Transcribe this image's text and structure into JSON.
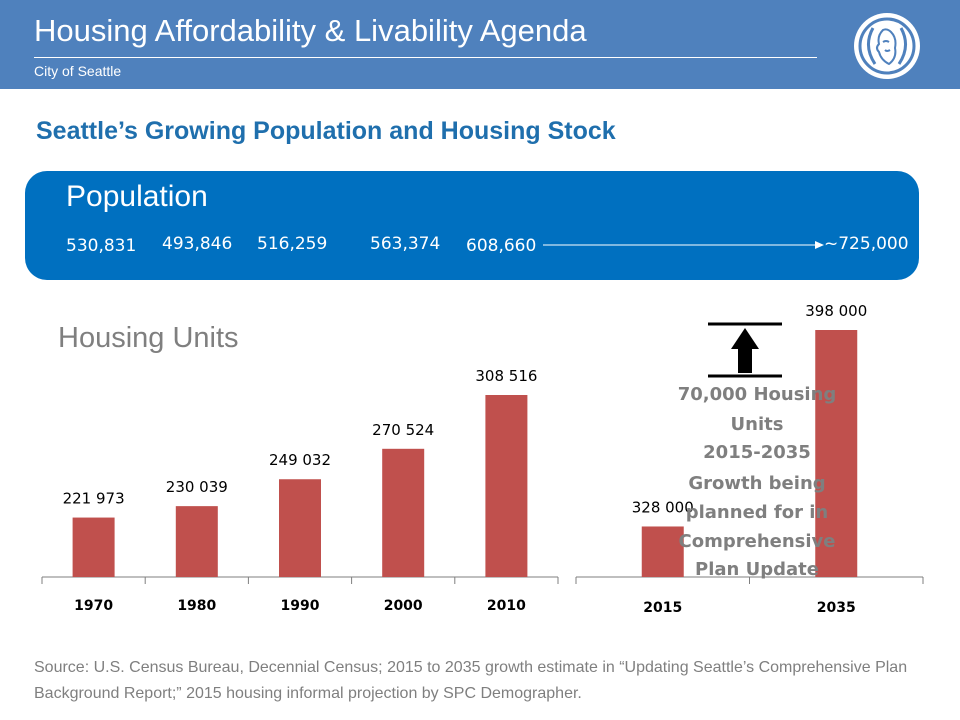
{
  "header": {
    "title": "Housing Affordability & Livability Agenda",
    "subtitle": "City of Seattle"
  },
  "section_title": "Seattle’s Growing Population and Housing Stock",
  "population": {
    "title": "Population",
    "values": [
      "530,831",
      "493,846",
      "516,259",
      "563,374",
      "608,660",
      "~725,000"
    ]
  },
  "housing_title": "Housing Units",
  "annotation": {
    "lines": [
      "70,000 Housing",
      "Units",
      "2015-2035",
      "Growth being",
      "planned for in",
      "Comprehensive",
      "Plan Update"
    ]
  },
  "source": "Source:  U.S. Census Bureau, Decennial Census; 2015 to 2035 growth estimate in “Updating Seattle’s Comprehensive Plan Background Report;”  2015 housing informal projection by SPC Demographer.",
  "colors": {
    "header": "#4f81bd",
    "panel": "#0070c0",
    "bar": "#c0504d",
    "title": "#1f6fad",
    "annotation": "#7f7f7f"
  },
  "chart_data": [
    {
      "type": "bar",
      "categories": [
        "1970",
        "1980",
        "1990",
        "2000",
        "2010"
      ],
      "values": [
        221973,
        230039,
        249032,
        270524,
        308516
      ],
      "labels": [
        "221 973",
        "230 039",
        "249 032",
        "270 524",
        "308 516"
      ],
      "title": "Housing Units",
      "ylim": [
        180000,
        320000
      ],
      "grid": false
    },
    {
      "type": "bar",
      "categories": [
        "2015",
        "2035"
      ],
      "values": [
        328000,
        398000
      ],
      "labels": [
        "328 000",
        "398 000"
      ],
      "ylim": [
        310000,
        410000
      ],
      "grid": false
    }
  ]
}
